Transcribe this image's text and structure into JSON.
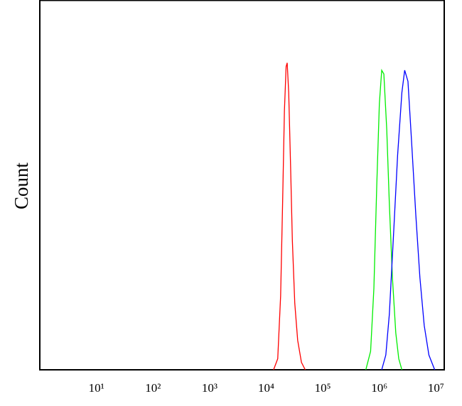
{
  "chart_data": {
    "type": "line",
    "y_label": "Count",
    "xscale": "log",
    "xlim": [
      1,
      14000000
    ],
    "ylim": [
      0,
      100
    ],
    "xticks": [
      {
        "value": 10,
        "label": "10¹"
      },
      {
        "value": 100,
        "label": "10²"
      },
      {
        "value": 1000,
        "label": "10³"
      },
      {
        "value": 10000,
        "label": "10⁴"
      },
      {
        "value": 100000,
        "label": "10⁵"
      },
      {
        "value": 1000000,
        "label": "10⁶"
      },
      {
        "value": 10000000,
        "label": "10⁷"
      }
    ],
    "series": [
      {
        "color": "#ff0000",
        "x": [
          13500,
          16000,
          18000,
          19500,
          21000,
          22500,
          23500,
          25000,
          27000,
          29000,
          32000,
          36000,
          42000,
          49000
        ],
        "values": [
          0,
          3,
          20,
          45,
          70,
          82,
          83,
          75,
          55,
          35,
          18,
          8,
          2,
          0
        ]
      },
      {
        "color": "#00ee00",
        "x": [
          576000,
          700000,
          800000,
          900000,
          1000000,
          1100000,
          1200000,
          1350000,
          1500000,
          1700000,
          1950000,
          2200000,
          2500000
        ],
        "values": [
          0,
          5,
          22,
          50,
          72,
          81,
          80,
          65,
          45,
          25,
          10,
          3,
          0
        ]
      },
      {
        "color": "#0000ff",
        "x": [
          1100000,
          1300000,
          1500000,
          1800000,
          2100000,
          2500000,
          2800000,
          3200000,
          3700000,
          4400000,
          5200000,
          6200000,
          7500000,
          9500000
        ],
        "values": [
          0,
          4,
          15,
          38,
          58,
          75,
          81,
          78,
          62,
          42,
          25,
          12,
          4,
          0
        ]
      }
    ]
  }
}
